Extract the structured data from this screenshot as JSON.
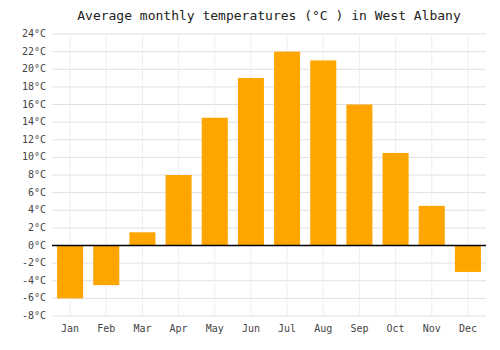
{
  "chart_data": {
    "type": "bar",
    "title": "Average monthly temperatures (°C ) in West Albany",
    "categories": [
      "Jan",
      "Feb",
      "Mar",
      "Apr",
      "May",
      "Jun",
      "Jul",
      "Aug",
      "Sep",
      "Oct",
      "Nov",
      "Dec"
    ],
    "values": [
      -6,
      -4.5,
      1.5,
      8,
      14.5,
      19,
      22,
      21,
      16,
      10.5,
      4.5,
      -3
    ],
    "color": "#FFA500",
    "ylim": [
      -8,
      24
    ],
    "yticks": [
      {
        "value": -8,
        "label": "-8°C"
      },
      {
        "value": -6,
        "label": "-6°C"
      },
      {
        "value": -4,
        "label": "-4°C"
      },
      {
        "value": -2,
        "label": "-2°C"
      },
      {
        "value": 0,
        "label": "0°C"
      },
      {
        "value": 2,
        "label": "2°C"
      },
      {
        "value": 4,
        "label": "4°C"
      },
      {
        "value": 6,
        "label": "6°C"
      },
      {
        "value": 8,
        "label": "8°C"
      },
      {
        "value": 10,
        "label": "10°C"
      },
      {
        "value": 12,
        "label": "12°C"
      },
      {
        "value": 14,
        "label": "14°C"
      },
      {
        "value": 16,
        "label": "16°C"
      },
      {
        "value": 18,
        "label": "18°C"
      },
      {
        "value": 20,
        "label": "20°C"
      },
      {
        "value": 22,
        "label": "22°C"
      },
      {
        "value": 24,
        "label": "24°C"
      }
    ],
    "grid": true
  }
}
